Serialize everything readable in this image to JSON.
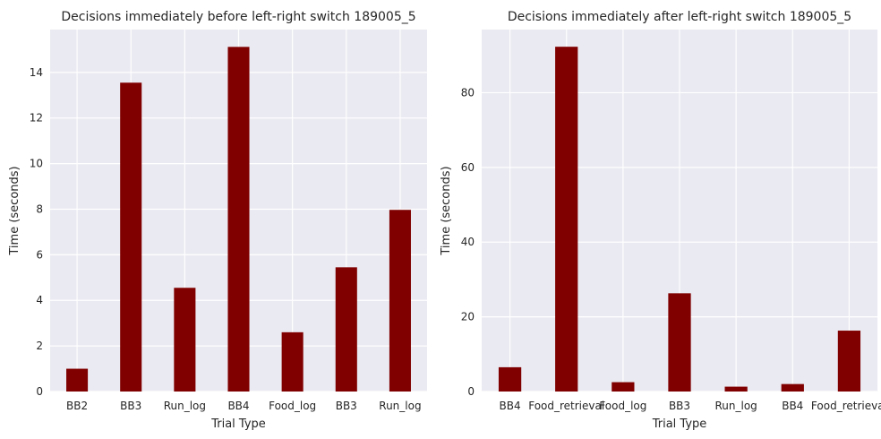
{
  "chart_data": [
    {
      "type": "bar",
      "title": "Decisions immediately before left-right switch 189005_5",
      "xlabel": "Trial Type",
      "ylabel": "Time (seconds)",
      "categories": [
        "BB2",
        "BB3",
        "Run_log",
        "BB4",
        "Food_log",
        "BB3",
        "Run_log"
      ],
      "values": [
        1.0,
        13.55,
        4.55,
        15.12,
        2.6,
        5.45,
        7.97
      ],
      "ylim": [
        0,
        15.88
      ],
      "yticks": [
        0,
        2,
        4,
        6,
        8,
        10,
        12,
        14
      ],
      "bar_color": "#800000",
      "grid": true
    },
    {
      "type": "bar",
      "title": "Decisions immediately after left-right switch 189005_5",
      "xlabel": "Trial Type",
      "ylabel": "Time (seconds)",
      "categories": [
        "BB4",
        "Food_retrieval",
        "Food_log",
        "BB3",
        "Run_log",
        "BB4",
        "Food_retrieval"
      ],
      "values": [
        6.5,
        92.3,
        2.5,
        26.3,
        1.3,
        2.0,
        16.3
      ],
      "ylim": [
        0,
        96.9
      ],
      "yticks": [
        0,
        20,
        40,
        60,
        80
      ],
      "bar_color": "#800000",
      "grid": true
    }
  ]
}
